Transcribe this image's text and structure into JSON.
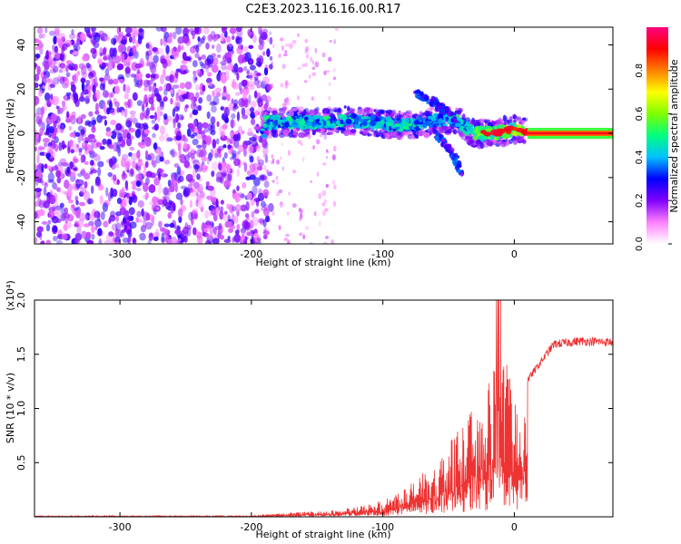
{
  "title": "C2E3.2023.116.16.00.R17",
  "chart_data": [
    {
      "type": "heatmap",
      "xlabel": "Height of straight line (km)",
      "ylabel": "Frequency (Hz)",
      "xlim": [
        -365,
        75
      ],
      "ylim": [
        -50,
        48
      ],
      "x_ticks": [
        -300,
        -200,
        -100,
        0
      ],
      "y_ticks": [
        -40,
        -20,
        0,
        20,
        40
      ],
      "x_tick_labels": [
        "-300",
        "-200",
        "-100",
        "0"
      ],
      "y_tick_labels": [
        "-40",
        "-20",
        "0",
        "20",
        "40"
      ],
      "colorbar": {
        "label": "Normalized spectral amplitude",
        "range": [
          0,
          1
        ],
        "ticks": [
          0.0,
          0.2,
          0.4,
          0.6,
          0.8
        ],
        "tick_labels": [
          "0.0",
          "0.2",
          "0.4",
          "0.6",
          "0.8"
        ],
        "colors": [
          "#ffffff",
          "#ff80ff",
          "#8000ff",
          "#0000ff",
          "#00c0ff",
          "#00ff80",
          "#80ff00",
          "#ffff00",
          "#ff8000",
          "#ff0000",
          "#ff0080"
        ]
      },
      "trace": [
        {
          "x": -190,
          "y": 5
        },
        {
          "x": -170,
          "y": 5
        },
        {
          "x": -150,
          "y": 5
        },
        {
          "x": -130,
          "y": 6
        },
        {
          "x": -110,
          "y": 5
        },
        {
          "x": -90,
          "y": 4
        },
        {
          "x": -75,
          "y": 4
        },
        {
          "x": -60,
          "y": 6
        },
        {
          "x": -45,
          "y": 6
        },
        {
          "x": -30,
          "y": 0
        },
        {
          "x": -15,
          "y": 0
        },
        {
          "x": 0,
          "y": 2
        },
        {
          "x": 15,
          "y": 0
        },
        {
          "x": 40,
          "y": 0
        },
        {
          "x": 75,
          "y": 0
        }
      ],
      "side_branches": [
        [
          {
            "x": -75,
            "y": 18
          },
          {
            "x": -60,
            "y": 14
          },
          {
            "x": -45,
            "y": 6
          }
        ],
        [
          {
            "x": -60,
            "y": 0
          },
          {
            "x": -48,
            "y": -8
          },
          {
            "x": -40,
            "y": -18
          }
        ]
      ]
    },
    {
      "type": "line",
      "xlabel": "Height of straight line (km)",
      "ylabel": "SNR (10 * v/v)",
      "y_multiplier": "(x10⁴)",
      "xlim": [
        -365,
        75
      ],
      "ylim": [
        0,
        2.0
      ],
      "x_ticks": [
        -300,
        -200,
        -100,
        0
      ],
      "y_ticks": [
        0.5,
        1.0,
        1.5,
        2.0
      ],
      "x_tick_labels": [
        "-300",
        "-200",
        "-100",
        "0"
      ],
      "y_tick_labels": [
        "0.5",
        "1.0",
        "1.5",
        "2.0"
      ],
      "series_color": "#ee3333",
      "envelope": [
        {
          "x": -365,
          "y": 0.01
        },
        {
          "x": -200,
          "y": 0.01
        },
        {
          "x": -170,
          "y": 0.04
        },
        {
          "x": -140,
          "y": 0.06
        },
        {
          "x": -120,
          "y": 0.09
        },
        {
          "x": -100,
          "y": 0.15
        },
        {
          "x": -80,
          "y": 0.3
        },
        {
          "x": -60,
          "y": 0.5
        },
        {
          "x": -40,
          "y": 0.85
        },
        {
          "x": -20,
          "y": 1.2
        },
        {
          "x": -10,
          "y": 1.65
        },
        {
          "x": 0,
          "y": 1.1
        },
        {
          "x": 15,
          "y": 1.35
        },
        {
          "x": 30,
          "y": 1.6
        },
        {
          "x": 50,
          "y": 1.63
        },
        {
          "x": 75,
          "y": 1.62
        }
      ]
    }
  ]
}
